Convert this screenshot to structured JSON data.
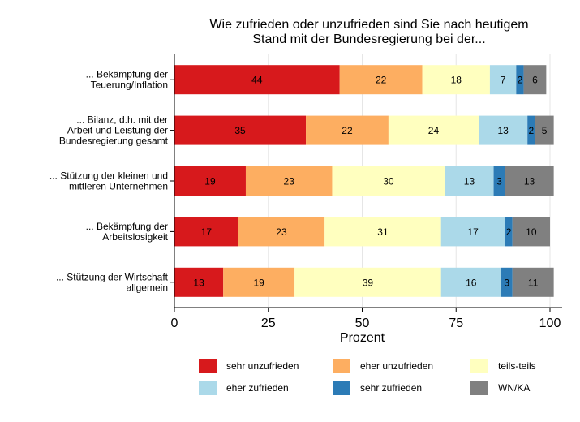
{
  "chart_data": {
    "type": "bar",
    "orientation": "horizontal",
    "stacked": true,
    "title_line1": "Wie zufrieden oder unzufrieden sind Sie nach heutigem",
    "title_line2": "Stand mit der Bundesregierung bei der...",
    "xlabel": "Prozent",
    "ylabel": "",
    "xlim": [
      0,
      100
    ],
    "xticks": [
      "0",
      "25",
      "50",
      "75",
      "100"
    ],
    "categories": [
      [
        "... Bekämpfung der",
        "Teuerung/Inflation"
      ],
      [
        "... Bilanz, d.h. mit der",
        "Arbeit und Leistung der",
        "Bundesregierung gesamt"
      ],
      [
        "... Stützung der kleinen und",
        "mittleren Unternehmen"
      ],
      [
        "... Bekämpfung der",
        "Arbeitslosigkeit"
      ],
      [
        "... Stützung der Wirtschaft",
        "allgemein"
      ]
    ],
    "series": [
      {
        "name": "sehr unzufrieden",
        "color": "#d7191c",
        "values": [
          44,
          35,
          19,
          17,
          13
        ]
      },
      {
        "name": "eher unzufrieden",
        "color": "#fdae61",
        "values": [
          22,
          22,
          23,
          23,
          19
        ]
      },
      {
        "name": "teils-teils",
        "color": "#ffffbf",
        "values": [
          18,
          24,
          30,
          31,
          39
        ]
      },
      {
        "name": "eher zufrieden",
        "color": "#abd9e9",
        "values": [
          7,
          13,
          13,
          17,
          16
        ]
      },
      {
        "name": "sehr zufrieden",
        "color": "#2c7bb6",
        "values": [
          2,
          2,
          3,
          2,
          3
        ]
      },
      {
        "name": "WN/KA",
        "color": "#808080",
        "values": [
          6,
          5,
          13,
          10,
          11
        ]
      }
    ],
    "grid": true,
    "legend_position": "bottom"
  }
}
